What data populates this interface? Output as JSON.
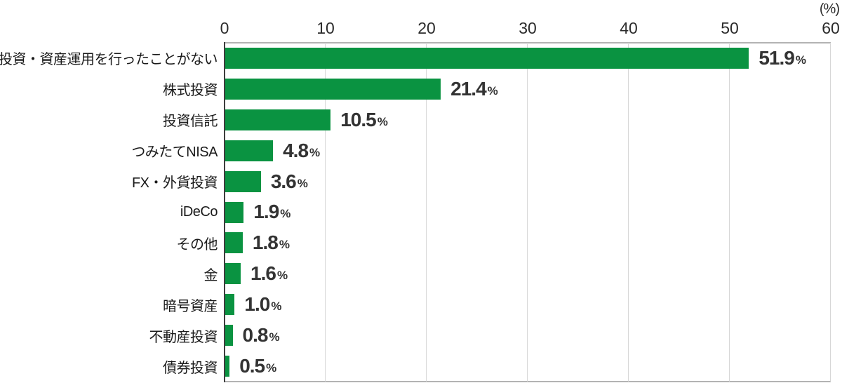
{
  "chart_data": {
    "type": "bar",
    "orientation": "horizontal",
    "title": "",
    "unit_label": "(%)",
    "categories": [
      "投資・資産運用を行ったことがない",
      "株式投資",
      "投資信託",
      "つみたてNISA",
      "FX・外貨投資",
      "iDeCo",
      "その他",
      "金",
      "暗号資産",
      "不動産投資",
      "債券投資"
    ],
    "values": [
      51.9,
      21.4,
      10.5,
      4.8,
      3.6,
      1.9,
      1.8,
      1.6,
      1.0,
      0.8,
      0.5
    ],
    "value_labels": [
      "51.9",
      "21.4",
      "10.5",
      "4.8",
      "3.6",
      "1.9",
      "1.8",
      "1.6",
      "1.0",
      "0.8",
      "0.5"
    ],
    "value_suffix": "%",
    "xlim": [
      0,
      60
    ],
    "xticks": [
      0,
      10,
      20,
      30,
      40,
      50,
      60
    ],
    "grid": true,
    "legend": false
  },
  "colors": {
    "bar": "#0a9341",
    "grid": "#d6d6d6",
    "plot_border": "#b3b3b3",
    "axis_line": "#3d3d3d",
    "value_text": "#333333",
    "category_text": "#1a1a1a"
  }
}
